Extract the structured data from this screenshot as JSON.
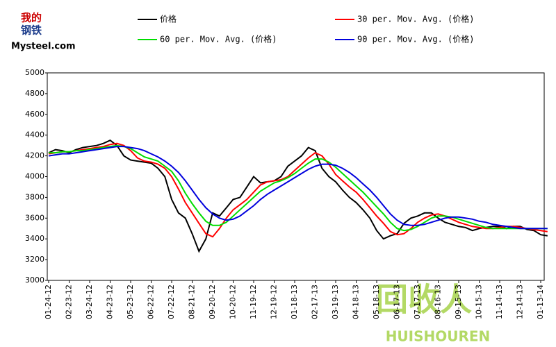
{
  "chart_data": {
    "type": "line",
    "annotations": [
      "我的",
      "钢铁",
      "Mysteel.com",
      "回收人",
      "HUISHOUREN"
    ],
    "categories": [
      "01-24-12",
      null,
      null,
      "02-23-12",
      null,
      null,
      "03-24-12",
      null,
      null,
      "04-23-12",
      null,
      null,
      "05-23-12",
      null,
      null,
      "06-22-12",
      null,
      null,
      "07-22-12",
      null,
      null,
      "08-21-12",
      null,
      null,
      "09-20-12",
      null,
      null,
      "10-20-12",
      null,
      null,
      "11-19-12",
      null,
      null,
      "12-19-12",
      null,
      null,
      "01-18-13",
      null,
      null,
      "02-17-13",
      null,
      null,
      "03-19-13",
      null,
      null,
      "04-18-13",
      null,
      null,
      "05-18-13",
      null,
      null,
      "06-17-13",
      null,
      null,
      "07-17-13",
      null,
      null,
      "08-16-13",
      null,
      null,
      "09-15-13",
      null,
      null,
      "10-15-13",
      null,
      null,
      "11-14-13",
      null,
      null,
      "12-14-13",
      null,
      null,
      "01-13-14",
      null
    ],
    "series": [
      {
        "name": "价格",
        "color": "#000000",
        "values": [
          4230,
          4260,
          4250,
          4230,
          4260,
          4280,
          4290,
          4300,
          4320,
          4350,
          4300,
          4200,
          4160,
          4150,
          4140,
          4130,
          4080,
          4000,
          3780,
          3650,
          3600,
          3450,
          3280,
          3400,
          3650,
          3620,
          3700,
          3780,
          3800,
          3900,
          4000,
          3940,
          3950,
          3960,
          4000,
          4100,
          4150,
          4200,
          4280,
          4250,
          4080,
          4000,
          3950,
          3870,
          3800,
          3750,
          3680,
          3600,
          3480,
          3400,
          3430,
          3450,
          3550,
          3600,
          3620,
          3650,
          3650,
          3600,
          3560,
          3540,
          3520,
          3510,
          3480,
          3500,
          3510,
          3520,
          3520,
          3500,
          3520,
          3520,
          3490,
          3480,
          3440,
          3430
        ]
      },
      {
        "name": "30 per. Mov. Avg. (价格)",
        "color": "#ff0000",
        "values": [
          4220,
          4230,
          4240,
          4240,
          4250,
          4260,
          4270,
          4280,
          4290,
          4310,
          4320,
          4300,
          4250,
          4180,
          4150,
          4140,
          4120,
          4080,
          4000,
          3880,
          3750,
          3650,
          3550,
          3450,
          3420,
          3500,
          3600,
          3680,
          3730,
          3780,
          3850,
          3920,
          3950,
          3960,
          3970,
          4000,
          4060,
          4120,
          4180,
          4230,
          4200,
          4120,
          4020,
          3960,
          3900,
          3850,
          3780,
          3700,
          3620,
          3550,
          3470,
          3440,
          3450,
          3500,
          3560,
          3600,
          3630,
          3640,
          3620,
          3590,
          3560,
          3540,
          3520,
          3510,
          3500,
          3500,
          3510,
          3520,
          3520,
          3510,
          3500,
          3490,
          3480,
          3470
        ]
      },
      {
        "name": "60 per. Mov. Avg. (价格)",
        "color": "#00dd00",
        "values": [
          4230,
          4230,
          4240,
          4240,
          4250,
          4250,
          4260,
          4270,
          4280,
          4290,
          4300,
          4290,
          4270,
          4230,
          4190,
          4170,
          4150,
          4100,
          4050,
          3960,
          3840,
          3740,
          3650,
          3570,
          3530,
          3530,
          3560,
          3620,
          3680,
          3740,
          3800,
          3860,
          3900,
          3940,
          3960,
          3990,
          4030,
          4080,
          4130,
          4170,
          4170,
          4140,
          4090,
          4030,
          3970,
          3910,
          3850,
          3780,
          3710,
          3640,
          3560,
          3500,
          3480,
          3490,
          3520,
          3560,
          3600,
          3620,
          3620,
          3610,
          3590,
          3570,
          3550,
          3530,
          3510,
          3500,
          3500,
          3500,
          3500,
          3500,
          3500,
          3500,
          3500,
          3500
        ]
      },
      {
        "name": "90 per. Mov. Avg. (价格)",
        "color": "#0000dd",
        "values": [
          4200,
          4210,
          4220,
          4220,
          4230,
          4240,
          4250,
          4260,
          4270,
          4280,
          4290,
          4290,
          4280,
          4270,
          4250,
          4220,
          4190,
          4150,
          4100,
          4040,
          3960,
          3870,
          3780,
          3700,
          3640,
          3600,
          3580,
          3590,
          3620,
          3670,
          3720,
          3780,
          3830,
          3870,
          3910,
          3950,
          3990,
          4030,
          4070,
          4100,
          4120,
          4120,
          4110,
          4080,
          4040,
          3990,
          3930,
          3870,
          3800,
          3720,
          3640,
          3580,
          3540,
          3530,
          3530,
          3540,
          3560,
          3580,
          3600,
          3610,
          3610,
          3600,
          3590,
          3570,
          3560,
          3540,
          3530,
          3520,
          3510,
          3500,
          3500,
          3500,
          3500,
          3500
        ]
      }
    ],
    "ylim": [
      3000,
      5000
    ],
    "yticks": [
      3000,
      3200,
      3400,
      3600,
      3800,
      4000,
      4200,
      4400,
      4600,
      4800,
      5000
    ],
    "grid": false
  }
}
